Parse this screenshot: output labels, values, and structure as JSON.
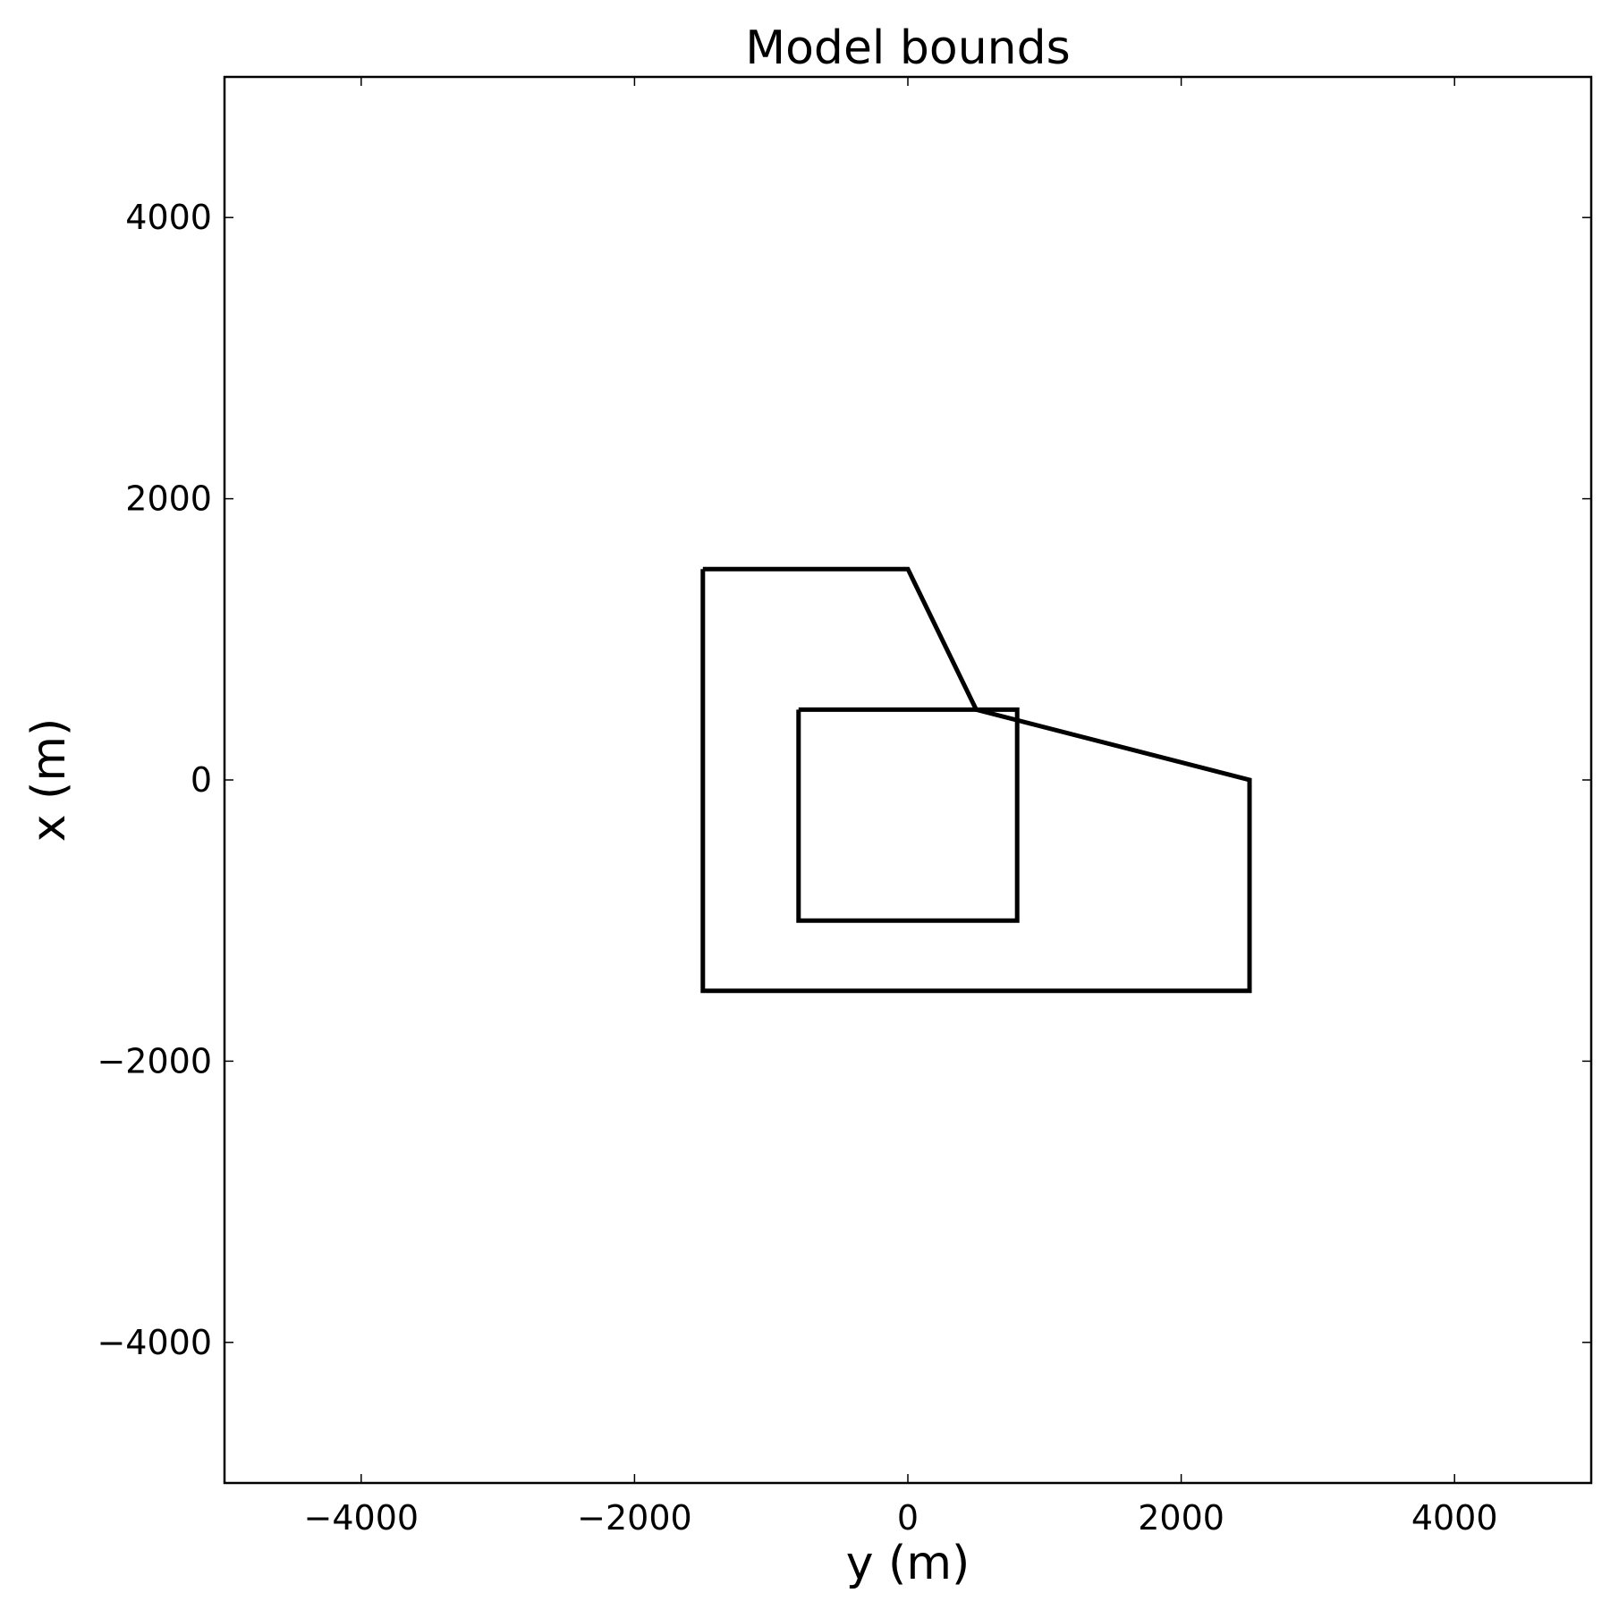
{
  "chart_data": {
    "type": "line",
    "title": "Model bounds",
    "xlabel": "y (m)",
    "ylabel": "x (m)",
    "xlim": [
      -5000,
      5000
    ],
    "ylim": [
      -5000,
      5000
    ],
    "xticks": [
      -4000,
      -2000,
      0,
      2000,
      4000
    ],
    "yticks": [
      -4000,
      -2000,
      0,
      2000,
      4000
    ],
    "xtick_labels": [
      "−4000",
      "−2000",
      "0",
      "2000",
      "4000"
    ],
    "ytick_labels": [
      "−4000",
      "−2000",
      "0",
      "2000",
      "4000"
    ],
    "grid": false,
    "line_color": "#000000",
    "series": [
      {
        "x": [
          -1500,
          0,
          500,
          2500,
          2500,
          -1500,
          -1500
        ],
        "y": [
          1500,
          1500,
          500,
          0,
          -1500,
          -1500,
          1500
        ]
      },
      {
        "x": [
          -800,
          800,
          800,
          -800,
          -800
        ],
        "y": [
          500,
          500,
          -1000,
          -1000,
          500
        ]
      }
    ]
  }
}
